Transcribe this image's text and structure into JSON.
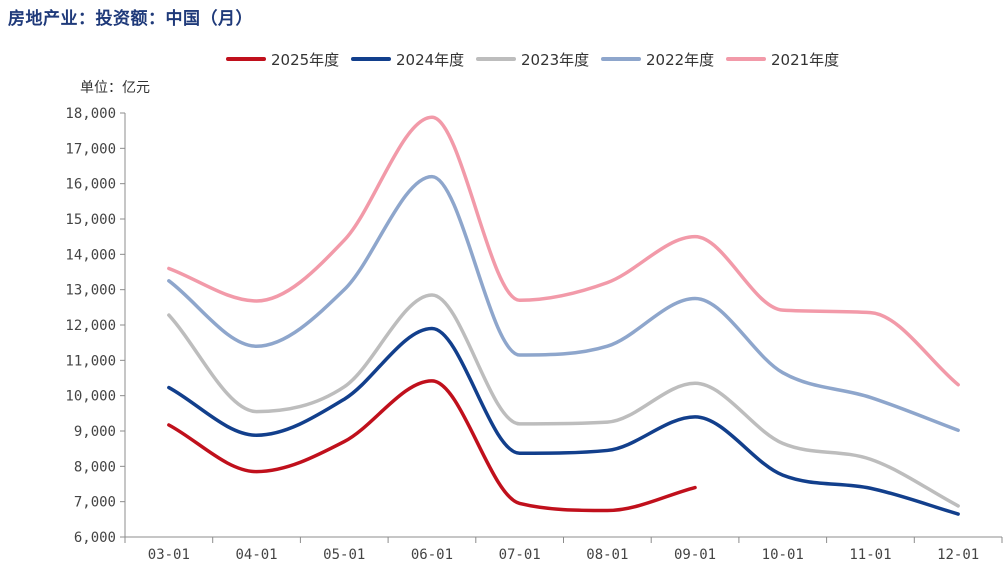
{
  "title": "房地产业：投资额：中国（月）",
  "unit_label": "单位：亿元",
  "chart_data": {
    "type": "line",
    "title": "房地产业：投资额：中国（月）",
    "ylabel": "单位：亿元",
    "xlabel": "",
    "ylim": [
      6000,
      18000
    ],
    "yticks": [
      6000,
      7000,
      8000,
      9000,
      10000,
      11000,
      12000,
      13000,
      14000,
      15000,
      16000,
      17000,
      18000
    ],
    "ytick_labels": [
      "6,000",
      "7,000",
      "8,000",
      "9,000",
      "10,000",
      "11,000",
      "12,000",
      "13,000",
      "14,000",
      "15,000",
      "16,000",
      "17,000",
      "18,000"
    ],
    "categories": [
      "03-01",
      "04-01",
      "05-01",
      "06-01",
      "07-01",
      "08-01",
      "09-01",
      "10-01",
      "11-01",
      "12-01"
    ],
    "grid": false,
    "legend_position": "top",
    "series": [
      {
        "name": "2025年度",
        "color": "#c0101c",
        "values": [
          9170,
          7850,
          8700,
          10420,
          6950,
          6750,
          7400,
          null,
          null,
          null
        ]
      },
      {
        "name": "2024年度",
        "color": "#123f8c",
        "values": [
          10230,
          8880,
          9900,
          11900,
          8370,
          8450,
          9400,
          7750,
          7380,
          6650
        ]
      },
      {
        "name": "2023年度",
        "color": "#bdbdbd",
        "values": [
          12280,
          9550,
          10250,
          12850,
          9200,
          9250,
          10350,
          8650,
          8200,
          6880
        ]
      },
      {
        "name": "2022年度",
        "color": "#8ea6cc",
        "values": [
          13250,
          11400,
          13000,
          16200,
          11150,
          11400,
          12750,
          10650,
          9950,
          9020
        ]
      },
      {
        "name": "2021年度",
        "color": "#f29aa9",
        "values": [
          13600,
          12680,
          14400,
          17880,
          12700,
          13200,
          14500,
          12420,
          12350,
          10310
        ]
      }
    ]
  }
}
